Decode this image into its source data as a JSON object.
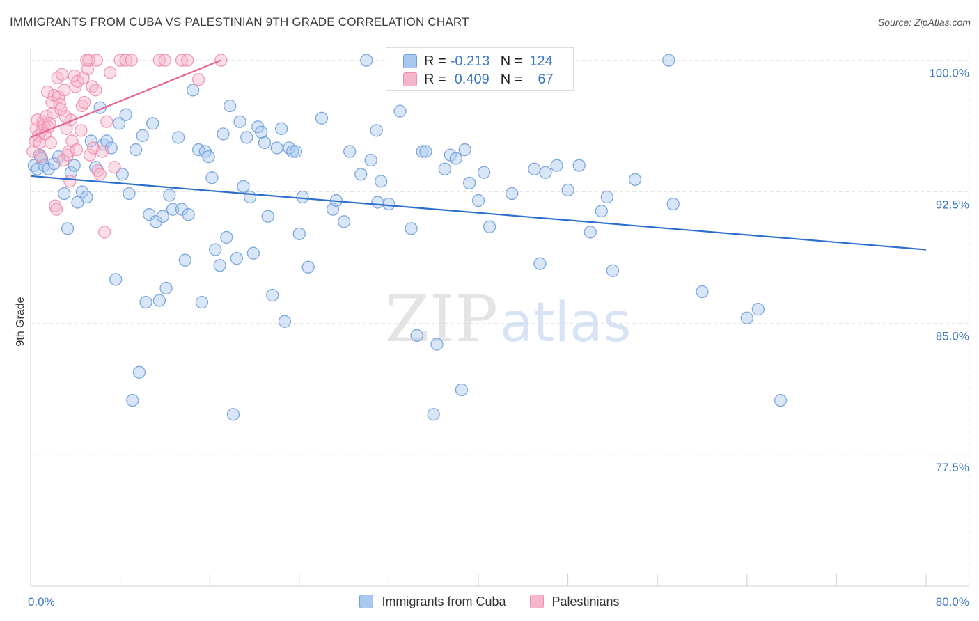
{
  "title": "IMMIGRANTS FROM CUBA VS PALESTINIAN 9TH GRADE CORRELATION CHART",
  "source": "Source: ZipAtlas.com",
  "watermark": {
    "zip": "ZIP",
    "atlas": "atlas"
  },
  "colors": {
    "blue_fill": "#a9c8ef",
    "blue_stroke": "#6f9fdc",
    "blue_line": "#2a6fce",
    "pink_fill": "#f6b6c9",
    "pink_stroke": "#ef8fae",
    "pink_line": "#e8648f",
    "axis_label": "#3b78c7",
    "grid": "#e6e6e6"
  },
  "legend": {
    "r_label": "R =",
    "n_label": "N =",
    "series": [
      {
        "r": "-0.213",
        "n": "124"
      },
      {
        "r": "0.409",
        "n": "67"
      }
    ]
  },
  "chart_data": {
    "type": "scatter",
    "title": "IMMIGRANTS FROM CUBA VS PALESTINIAN 9TH GRADE CORRELATION CHART",
    "xlabel": "",
    "ylabel": "9th Grade",
    "xlim": [
      0,
      80
    ],
    "ylim": [
      70.0,
      100.7
    ],
    "x_tick_labels": [
      {
        "value": 0,
        "label": "0.0%"
      },
      {
        "value": 80,
        "label": "80.0%"
      }
    ],
    "y_ticks": [
      {
        "value": 100.0,
        "label": "100.0%"
      },
      {
        "value": 92.5,
        "label": "92.5%"
      },
      {
        "value": 85.0,
        "label": "85.0%"
      },
      {
        "value": 77.5,
        "label": "77.5%"
      }
    ],
    "grid": true,
    "legend_position": "bottom",
    "series": [
      {
        "name": "Immigrants from Cuba",
        "color": "#a9c8ef",
        "trend": {
          "x": [
            0,
            80
          ],
          "y": [
            93.4,
            89.2
          ]
        },
        "points": [
          [
            0.3,
            94.0
          ],
          [
            0.6,
            93.8
          ],
          [
            0.8,
            94.6
          ],
          [
            1.0,
            94.4
          ],
          [
            1.2,
            94.0
          ],
          [
            1.6,
            93.8
          ],
          [
            2.1,
            94.1
          ],
          [
            2.5,
            94.5
          ],
          [
            3.0,
            92.4
          ],
          [
            3.3,
            90.4
          ],
          [
            3.6,
            93.6
          ],
          [
            3.9,
            94.0
          ],
          [
            4.2,
            91.9
          ],
          [
            4.6,
            92.5
          ],
          [
            5.0,
            92.2
          ],
          [
            5.4,
            95.4
          ],
          [
            5.8,
            93.9
          ],
          [
            6.2,
            97.3
          ],
          [
            6.5,
            95.2
          ],
          [
            6.8,
            95.4
          ],
          [
            7.2,
            95.0
          ],
          [
            7.6,
            87.5
          ],
          [
            7.9,
            96.4
          ],
          [
            8.2,
            93.5
          ],
          [
            8.5,
            96.9
          ],
          [
            8.8,
            92.4
          ],
          [
            9.1,
            80.6
          ],
          [
            9.4,
            94.9
          ],
          [
            9.7,
            82.2
          ],
          [
            10.0,
            95.7
          ],
          [
            10.3,
            86.2
          ],
          [
            10.6,
            91.2
          ],
          [
            10.9,
            96.4
          ],
          [
            11.2,
            90.8
          ],
          [
            11.5,
            86.3
          ],
          [
            11.8,
            91.1
          ],
          [
            12.1,
            87.0
          ],
          [
            12.4,
            92.3
          ],
          [
            12.7,
            91.5
          ],
          [
            13.2,
            95.6
          ],
          [
            13.5,
            91.5
          ],
          [
            13.8,
            88.6
          ],
          [
            14.1,
            91.2
          ],
          [
            14.5,
            98.3
          ],
          [
            15.0,
            94.9
          ],
          [
            15.3,
            86.2
          ],
          [
            15.6,
            94.8
          ],
          [
            15.9,
            94.5
          ],
          [
            16.2,
            93.3
          ],
          [
            16.5,
            89.2
          ],
          [
            16.9,
            88.3
          ],
          [
            17.2,
            95.8
          ],
          [
            17.5,
            89.9
          ],
          [
            17.8,
            97.4
          ],
          [
            18.1,
            79.8
          ],
          [
            18.4,
            88.7
          ],
          [
            18.7,
            96.5
          ],
          [
            19.0,
            92.8
          ],
          [
            19.3,
            95.6
          ],
          [
            19.6,
            92.2
          ],
          [
            19.9,
            89.0
          ],
          [
            20.3,
            96.2
          ],
          [
            20.6,
            95.9
          ],
          [
            20.9,
            95.3
          ],
          [
            21.2,
            91.1
          ],
          [
            21.6,
            86.6
          ],
          [
            22.0,
            95.0
          ],
          [
            22.4,
            96.1
          ],
          [
            22.7,
            85.1
          ],
          [
            23.1,
            95.0
          ],
          [
            23.4,
            94.8
          ],
          [
            23.7,
            94.8
          ],
          [
            24.0,
            90.1
          ],
          [
            24.3,
            92.2
          ],
          [
            24.8,
            88.2
          ],
          [
            26.0,
            96.7
          ],
          [
            27.0,
            91.5
          ],
          [
            27.3,
            92.0
          ],
          [
            28.0,
            90.8
          ],
          [
            28.5,
            94.8
          ],
          [
            29.5,
            93.5
          ],
          [
            30.0,
            100.0
          ],
          [
            30.4,
            94.3
          ],
          [
            30.9,
            96.0
          ],
          [
            31.0,
            91.9
          ],
          [
            31.3,
            93.1
          ],
          [
            32.0,
            91.8
          ],
          [
            33.0,
            97.1
          ],
          [
            34.0,
            90.4
          ],
          [
            34.5,
            84.3
          ],
          [
            35.0,
            94.8
          ],
          [
            35.3,
            94.8
          ],
          [
            36.0,
            79.8
          ],
          [
            36.3,
            83.8
          ],
          [
            37.0,
            93.8
          ],
          [
            37.5,
            94.6
          ],
          [
            38.0,
            94.4
          ],
          [
            38.5,
            81.2
          ],
          [
            38.8,
            94.9
          ],
          [
            39.2,
            93.0
          ],
          [
            40.0,
            92.0
          ],
          [
            40.5,
            93.6
          ],
          [
            41.0,
            90.5
          ],
          [
            43.0,
            92.4
          ],
          [
            45.0,
            93.8
          ],
          [
            45.5,
            88.4
          ],
          [
            46.0,
            93.6
          ],
          [
            47.0,
            94.0
          ],
          [
            48.0,
            92.6
          ],
          [
            49.0,
            94.0
          ],
          [
            50.0,
            90.2
          ],
          [
            51.0,
            91.4
          ],
          [
            51.5,
            92.2
          ],
          [
            52.0,
            88.0
          ],
          [
            54.0,
            93.2
          ],
          [
            57.0,
            100.0
          ],
          [
            57.4,
            91.8
          ],
          [
            60.0,
            86.8
          ],
          [
            64.0,
            85.3
          ],
          [
            65.0,
            85.8
          ],
          [
            67.0,
            80.6
          ]
        ]
      },
      {
        "name": "Palestinians",
        "color": "#f6b6c9",
        "trend": {
          "x": [
            0,
            17
          ],
          "y": [
            95.6,
            100.0
          ]
        },
        "points": [
          [
            0.2,
            94.8
          ],
          [
            0.4,
            95.4
          ],
          [
            0.5,
            96.1
          ],
          [
            0.6,
            96.6
          ],
          [
            0.7,
            95.7
          ],
          [
            0.8,
            95.3
          ],
          [
            0.9,
            94.5
          ],
          [
            1.0,
            96.0
          ],
          [
            1.1,
            96.5
          ],
          [
            1.2,
            96.3
          ],
          [
            1.3,
            95.8
          ],
          [
            1.4,
            96.8
          ],
          [
            1.5,
            98.2
          ],
          [
            1.6,
            96.2
          ],
          [
            1.7,
            96.4
          ],
          [
            1.8,
            95.3
          ],
          [
            1.9,
            97.6
          ],
          [
            2.0,
            97.0
          ],
          [
            2.1,
            98.0
          ],
          [
            2.2,
            91.7
          ],
          [
            2.3,
            91.5
          ],
          [
            2.4,
            99.0
          ],
          [
            2.5,
            97.9
          ],
          [
            2.6,
            97.5
          ],
          [
            2.7,
            97.2
          ],
          [
            2.8,
            99.2
          ],
          [
            2.9,
            94.3
          ],
          [
            3.0,
            98.3
          ],
          [
            3.1,
            96.8
          ],
          [
            3.2,
            96.1
          ],
          [
            3.3,
            94.6
          ],
          [
            3.4,
            94.8
          ],
          [
            3.5,
            93.1
          ],
          [
            3.6,
            96.6
          ],
          [
            3.7,
            95.4
          ],
          [
            3.9,
            99.1
          ],
          [
            4.0,
            98.5
          ],
          [
            4.1,
            94.9
          ],
          [
            4.2,
            98.8
          ],
          [
            4.5,
            96.0
          ],
          [
            4.6,
            97.4
          ],
          [
            4.7,
            99.0
          ],
          [
            4.8,
            97.6
          ],
          [
            5.0,
            100.0
          ],
          [
            5.1,
            99.5
          ],
          [
            5.2,
            100.0
          ],
          [
            5.3,
            94.6
          ],
          [
            5.5,
            98.5
          ],
          [
            5.6,
            95.0
          ],
          [
            5.8,
            98.3
          ],
          [
            5.9,
            100.0
          ],
          [
            6.0,
            93.7
          ],
          [
            6.2,
            93.5
          ],
          [
            6.4,
            94.8
          ],
          [
            6.6,
            90.2
          ],
          [
            6.8,
            96.5
          ],
          [
            7.1,
            99.3
          ],
          [
            7.5,
            93.9
          ],
          [
            8.0,
            100.0
          ],
          [
            8.5,
            100.0
          ],
          [
            9.0,
            100.0
          ],
          [
            11.5,
            100.0
          ],
          [
            12.0,
            100.0
          ],
          [
            13.5,
            100.0
          ],
          [
            14.0,
            100.0
          ],
          [
            15.0,
            98.9
          ],
          [
            17.0,
            100.0
          ]
        ]
      }
    ]
  }
}
